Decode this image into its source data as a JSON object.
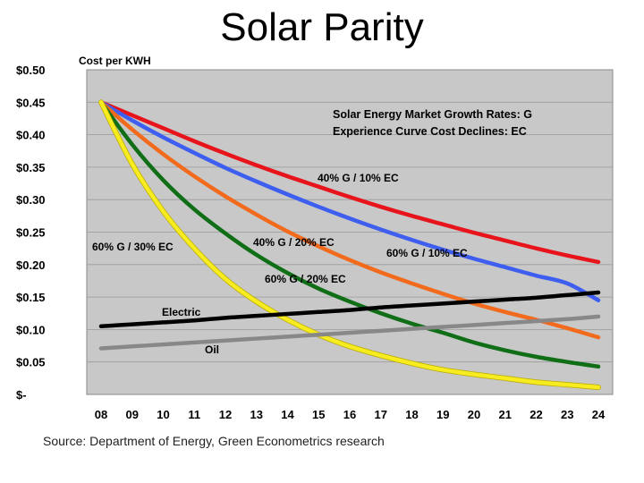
{
  "slide": {
    "title": "Solar Parity",
    "source": "Source: Department of Energy, Green Econometrics research"
  },
  "chart_data": {
    "type": "line",
    "ylabel": "Cost per KWH",
    "ylim": [
      0,
      0.5
    ],
    "y_ticks": [
      {
        "value": 0.5,
        "label": "$0.50"
      },
      {
        "value": 0.45,
        "label": "$0.45"
      },
      {
        "value": 0.4,
        "label": "$0.40"
      },
      {
        "value": 0.35,
        "label": "$0.35"
      },
      {
        "value": 0.3,
        "label": "$0.30"
      },
      {
        "value": 0.25,
        "label": "$0.25"
      },
      {
        "value": 0.2,
        "label": "$0.20"
      },
      {
        "value": 0.15,
        "label": "$0.15"
      },
      {
        "value": 0.1,
        "label": "$0.10"
      },
      {
        "value": 0.05,
        "label": "$0.05"
      },
      {
        "value": 0,
        "label": "$-"
      }
    ],
    "categories": [
      "08",
      "09",
      "10",
      "11",
      "12",
      "13",
      "14",
      "15",
      "16",
      "17",
      "18",
      "19",
      "20",
      "21",
      "22",
      "23",
      "24"
    ],
    "grid": true,
    "annotation": {
      "line1": "Solar Energy Market Growth Rates:  G",
      "line2": "Experience Curve Cost Declines:  EC"
    },
    "series": [
      {
        "name": "40% G / 10% EC",
        "color": "#e8141b",
        "values": [
          0.45,
          0.43,
          0.41,
          0.39,
          0.371,
          0.353,
          0.336,
          0.32,
          0.304,
          0.289,
          0.275,
          0.262,
          0.249,
          0.237,
          0.225,
          0.214,
          0.204
        ]
      },
      {
        "name": "60% G / 10% EC",
        "color": "#3e5ef0",
        "values": [
          0.45,
          0.422,
          0.396,
          0.372,
          0.349,
          0.328,
          0.308,
          0.289,
          0.271,
          0.254,
          0.238,
          0.223,
          0.209,
          0.196,
          0.183,
          0.171,
          0.145
        ]
      },
      {
        "name": "40% G / 20% EC",
        "color": "#f26a1b",
        "values": [
          0.45,
          0.408,
          0.37,
          0.336,
          0.305,
          0.277,
          0.251,
          0.228,
          0.207,
          0.188,
          0.171,
          0.155,
          0.14,
          0.127,
          0.115,
          0.102,
          0.088
        ]
      },
      {
        "name": "60% G / 20% EC",
        "color": "#0f6e16",
        "values": [
          0.45,
          0.385,
          0.33,
          0.285,
          0.248,
          0.215,
          0.187,
          0.163,
          0.143,
          0.125,
          0.109,
          0.095,
          0.08,
          0.068,
          0.058,
          0.05,
          0.043
        ]
      },
      {
        "name": "60% G / 30% EC",
        "color": "#f7ec1f",
        "values": [
          0.45,
          0.355,
          0.282,
          0.225,
          0.178,
          0.143,
          0.115,
          0.092,
          0.074,
          0.06,
          0.048,
          0.038,
          0.031,
          0.025,
          0.019,
          0.015,
          0.011
        ]
      },
      {
        "name": "Electric",
        "color": "#000000",
        "values": [
          0.105,
          0.108,
          0.111,
          0.114,
          0.118,
          0.121,
          0.124,
          0.127,
          0.13,
          0.134,
          0.137,
          0.14,
          0.143,
          0.146,
          0.149,
          0.153,
          0.157
        ]
      },
      {
        "name": "Oil",
        "color": "#888888",
        "values": [
          0.071,
          0.074,
          0.077,
          0.08,
          0.083,
          0.086,
          0.089,
          0.092,
          0.095,
          0.098,
          0.101,
          0.104,
          0.107,
          0.11,
          0.113,
          0.116,
          0.12
        ]
      }
    ]
  }
}
